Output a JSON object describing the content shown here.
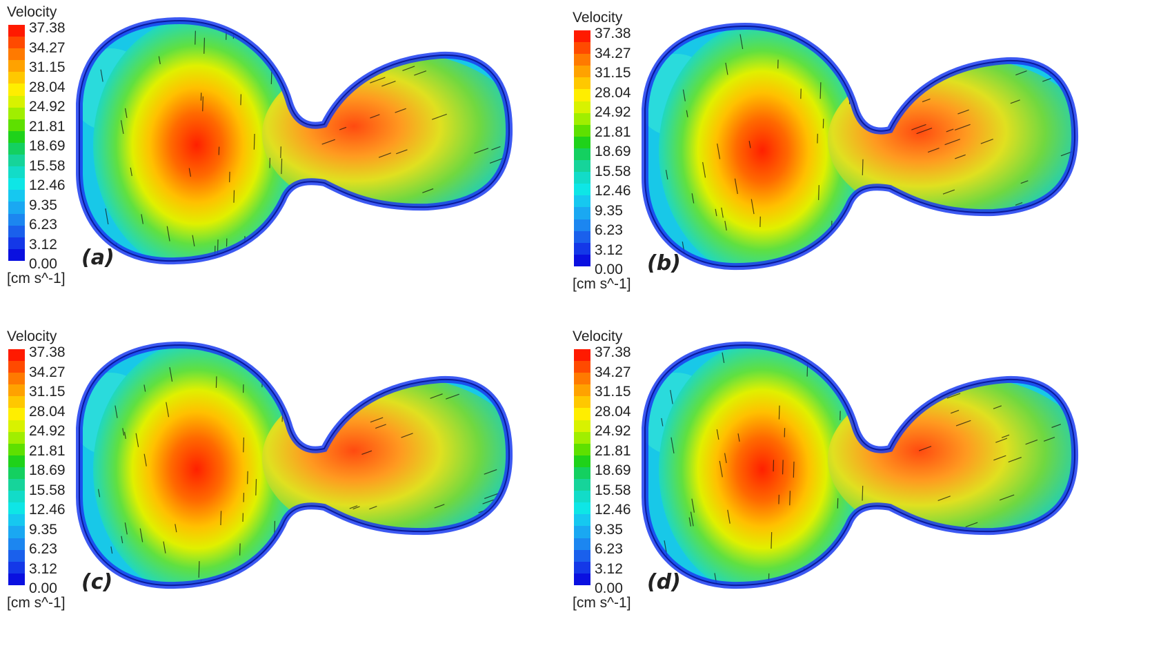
{
  "colorbar": {
    "title": "Velocity",
    "units": "[cm s^-1]",
    "ticks": [
      "37.38",
      "34.27",
      "31.15",
      "28.04",
      "24.92",
      "21.81",
      "18.69",
      "15.58",
      "12.46",
      "9.35",
      "6.23",
      "3.12",
      "0.00"
    ],
    "colors": [
      "#ff1a00",
      "#ff4a00",
      "#ff7a00",
      "#ffa200",
      "#ffc800",
      "#ffee00",
      "#d8f200",
      "#a0ee00",
      "#5ee000",
      "#1fd21a",
      "#14d060",
      "#16d49a",
      "#12dcc8",
      "#0ee6e6",
      "#16c8f0",
      "#1aa8f2",
      "#1c86f0",
      "#1a60ec",
      "#1438e8",
      "#0a10e0"
    ],
    "min": 0.0,
    "max": 37.38
  },
  "panels": [
    {
      "label": "(a)"
    },
    {
      "label": "(b)"
    },
    {
      "label": "(c)"
    },
    {
      "label": "(d)"
    }
  ]
}
